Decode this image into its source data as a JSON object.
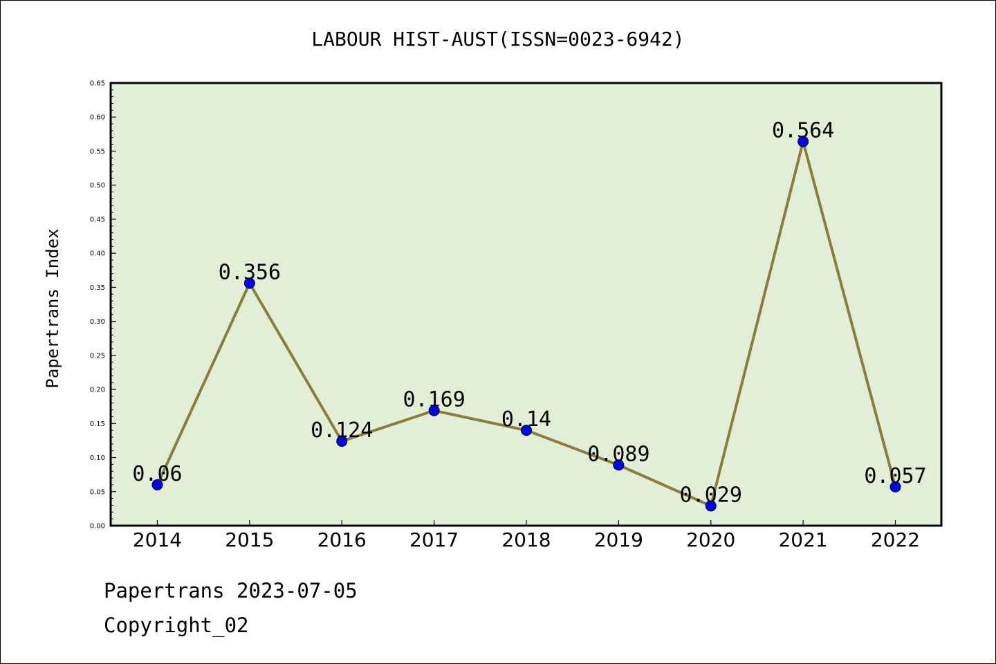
{
  "chart_data": {
    "type": "line",
    "title": "LABOUR HIST-AUST(ISSN=0023-6942)",
    "xlabel": "",
    "ylabel": "Papertrans Index",
    "categories": [
      "2014",
      "2015",
      "2016",
      "2017",
      "2018",
      "2019",
      "2020",
      "2021",
      "2022"
    ],
    "values": [
      0.06,
      0.356,
      0.124,
      0.169,
      0.14,
      0.089,
      0.029,
      0.564,
      0.057
    ],
    "data_labels": [
      "0.06",
      "0.356",
      "0.124",
      "0.169",
      "0.14",
      "0.089",
      "0.029",
      "0.564",
      "0.057"
    ],
    "ylim": [
      0,
      0.65
    ],
    "yticks": [
      "0.00",
      "0.05",
      "0.10",
      "0.15",
      "0.20",
      "0.25",
      "0.30",
      "0.35",
      "0.40",
      "0.45",
      "0.50",
      "0.55",
      "0.60",
      "0.65"
    ],
    "grid": false,
    "colors": {
      "plot_background": "#e2efd6",
      "line": "#8b7d3a",
      "marker": "#0000ff"
    }
  },
  "footer": {
    "line1": "Papertrans 2023-07-05",
    "line2": "Copyright_02"
  }
}
